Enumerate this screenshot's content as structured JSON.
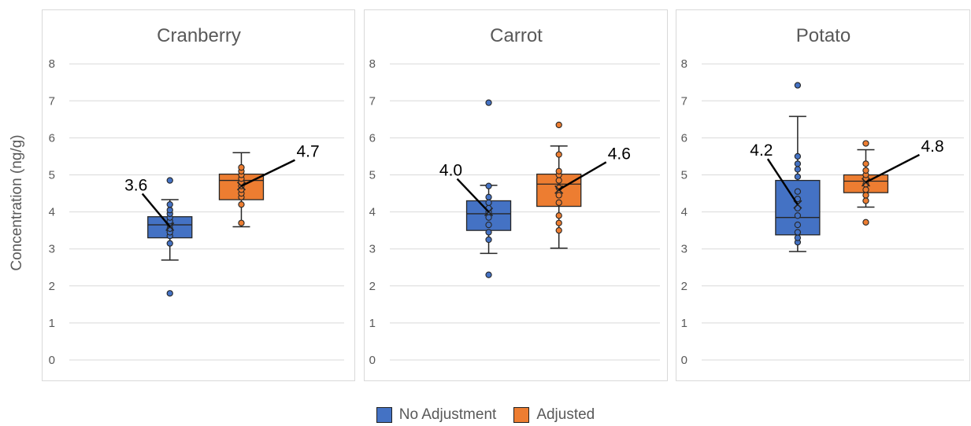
{
  "ylabel": "Concentration (ng/g)",
  "colors": {
    "no_adjustment": "#4472c4",
    "adjusted": "#ed7d31",
    "grid": "#d9d9d9",
    "panel_border": "#d9d9d9",
    "text": "#595959"
  },
  "legend": {
    "items": [
      {
        "label": "No Adjustment",
        "color": "#4472c4"
      },
      {
        "label": "Adjusted",
        "color": "#ed7d31"
      }
    ]
  },
  "chart_data": [
    {
      "type": "box",
      "title": "Cranberry",
      "ylim": [
        0,
        8
      ],
      "yticks": [
        "0",
        "1",
        "2",
        "3",
        "4",
        "5",
        "6",
        "7",
        "8"
      ],
      "grid": true,
      "series": [
        {
          "name": "No Adjustment",
          "whisker_low": 2.7,
          "q1": 3.3,
          "median": 3.65,
          "q3": 3.87,
          "whisker_high": 4.33,
          "mean": 3.6,
          "mean_label": "3.6",
          "points": [
            1.8,
            3.15,
            3.35,
            3.45,
            3.55,
            3.65,
            3.75,
            3.85,
            3.95,
            4.05,
            4.2,
            4.85
          ]
        },
        {
          "name": "Adjusted",
          "whisker_low": 3.6,
          "q1": 4.33,
          "median": 4.85,
          "q3": 5.02,
          "whisker_high": 5.6,
          "mean": 4.7,
          "mean_label": "4.7",
          "points": [
            3.7,
            4.2,
            4.4,
            4.5,
            4.6,
            4.7,
            4.8,
            4.9,
            5.0,
            5.1,
            5.2
          ]
        }
      ]
    },
    {
      "type": "box",
      "title": "Carrot",
      "ylim": [
        0,
        8
      ],
      "yticks": [
        "0",
        "1",
        "2",
        "3",
        "4",
        "5",
        "6",
        "7",
        "8"
      ],
      "grid": true,
      "series": [
        {
          "name": "No Adjustment",
          "whisker_low": 2.88,
          "q1": 3.5,
          "median": 3.95,
          "q3": 4.3,
          "whisker_high": 4.72,
          "mean": 4.0,
          "mean_label": "4.0",
          "points": [
            2.3,
            3.25,
            3.45,
            3.65,
            3.85,
            4.0,
            4.1,
            4.25,
            4.4,
            4.7,
            6.95
          ]
        },
        {
          "name": "Adjusted",
          "whisker_low": 3.02,
          "q1": 4.15,
          "median": 4.75,
          "q3": 5.02,
          "whisker_high": 5.78,
          "mean": 4.6,
          "mean_label": "4.6",
          "points": [
            3.5,
            3.7,
            3.9,
            4.25,
            4.45,
            4.65,
            4.85,
            5.0,
            5.1,
            5.55,
            6.35
          ]
        }
      ]
    },
    {
      "type": "box",
      "title": "Potato",
      "ylim": [
        0,
        8
      ],
      "yticks": [
        "0",
        "1",
        "2",
        "3",
        "4",
        "5",
        "6",
        "7",
        "8"
      ],
      "grid": true,
      "series": [
        {
          "name": "No Adjustment",
          "whisker_low": 2.93,
          "q1": 3.38,
          "median": 3.85,
          "q3": 4.85,
          "whisker_high": 6.58,
          "mean": 4.2,
          "mean_label": "4.2",
          "points": [
            3.18,
            3.3,
            3.45,
            3.65,
            3.9,
            4.1,
            4.35,
            4.55,
            4.95,
            5.15,
            5.3,
            5.5,
            7.42
          ]
        },
        {
          "name": "Adjusted",
          "whisker_low": 4.13,
          "q1": 4.52,
          "median": 4.83,
          "q3": 5.0,
          "whisker_high": 5.68,
          "mean": 4.8,
          "mean_label": "4.8",
          "points": [
            3.72,
            4.3,
            4.45,
            4.6,
            4.75,
            4.9,
            5.0,
            5.12,
            5.3,
            5.85
          ]
        }
      ]
    }
  ]
}
